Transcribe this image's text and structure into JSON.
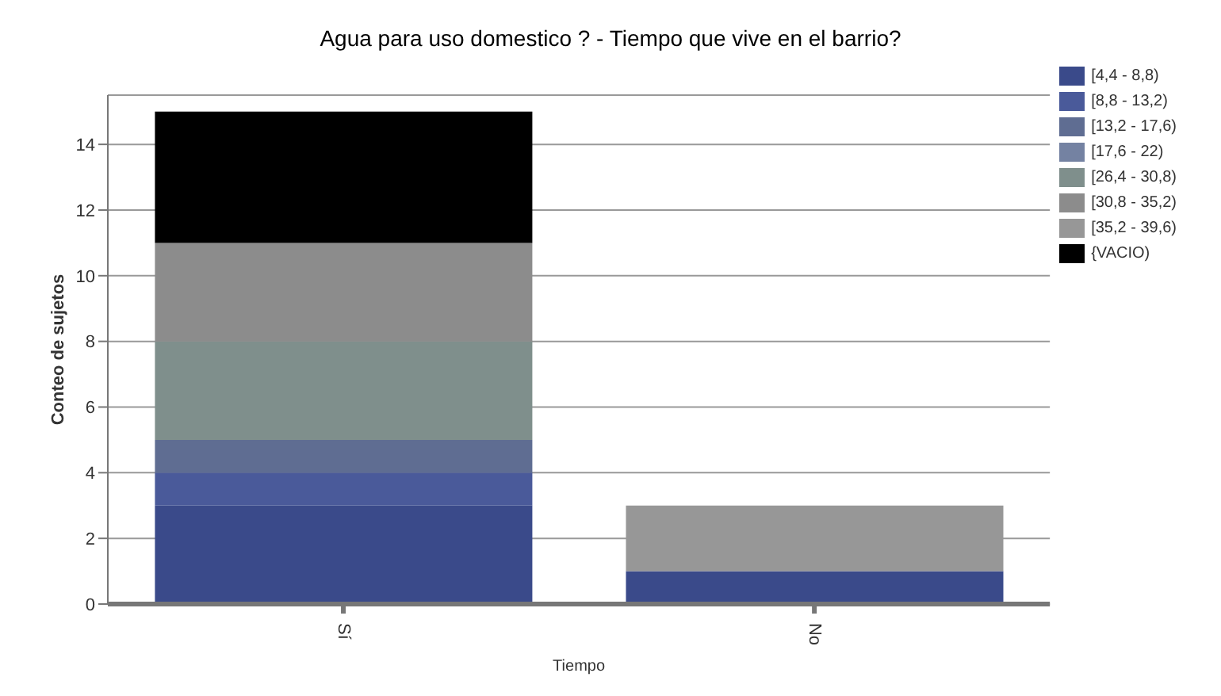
{
  "chart_data": {
    "type": "bar",
    "title": "Agua para uso domestico ? - Tiempo que vive en el barrio?",
    "xlabel": "Tiempo",
    "ylabel": "Conteo de sujetos",
    "categories": [
      "Sí",
      "No"
    ],
    "stacked": true,
    "ylim": [
      0,
      15.5
    ],
    "yticks": [
      0,
      2,
      4,
      6,
      8,
      10,
      12,
      14
    ],
    "grid": "y",
    "legend": "top right",
    "series": [
      {
        "name": "[4,4 - 8,8)",
        "color": "#3a4a8a",
        "values": [
          3,
          1
        ]
      },
      {
        "name": "[8,8 - 13,2)",
        "color": "#4a5a9a",
        "values": [
          1,
          0
        ]
      },
      {
        "name": "[13,2 - 17,6)",
        "color": "#5f6d92",
        "values": [
          1,
          0
        ]
      },
      {
        "name": "[17,6 - 22)",
        "color": "#7482a2",
        "values": [
          0,
          0
        ]
      },
      {
        "name": "[26,4 - 30,8)",
        "color": "#7f8f8c",
        "values": [
          3,
          0
        ]
      },
      {
        "name": "[30,8 - 35,2)",
        "color": "#8c8c8c",
        "values": [
          3,
          0
        ]
      },
      {
        "name": "[35,2 - 39,6)",
        "color": "#979797",
        "values": [
          0,
          2
        ]
      },
      {
        "name": "{VACIO)",
        "color": "#000000",
        "values": [
          4,
          0
        ]
      }
    ]
  }
}
